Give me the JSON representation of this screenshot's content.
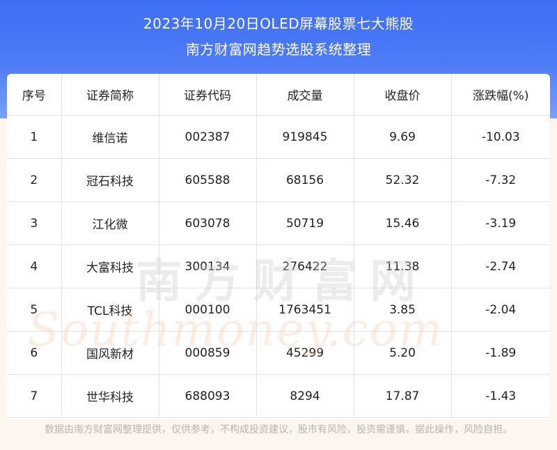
{
  "header": {
    "title_line1": "2023年10月20日OLED屏幕股票七大熊股",
    "title_line2": "南方财富网趋势选股系统整理"
  },
  "table": {
    "columns": [
      "序号",
      "证券简称",
      "证券代码",
      "成交量",
      "收盘价",
      "涨跌幅(%)"
    ],
    "rows": [
      [
        "1",
        "维信诺",
        "002387",
        "919845",
        "9.69",
        "-10.03"
      ],
      [
        "2",
        "冠石科技",
        "605588",
        "68156",
        "52.32",
        "-7.32"
      ],
      [
        "3",
        "江化微",
        "603078",
        "50719",
        "15.46",
        "-3.19"
      ],
      [
        "4",
        "大富科技",
        "300134",
        "276422",
        "11.38",
        "-2.74"
      ],
      [
        "5",
        "TCL科技",
        "000100",
        "1763451",
        "3.85",
        "-2.04"
      ],
      [
        "6",
        "国风新材",
        "000859",
        "45299",
        "5.20",
        "-1.89"
      ],
      [
        "7",
        "世华科技",
        "688093",
        "8294",
        "17.87",
        "-1.43"
      ]
    ]
  },
  "watermark": {
    "chinese": "南方财富网",
    "english": "Southmoney.com"
  },
  "footer": {
    "disclaimer": "数据由南方财富网整理提供，仅供参考，不构成投资建议，股市有风险，投资需谨慎，据此操作，风险自担。"
  }
}
